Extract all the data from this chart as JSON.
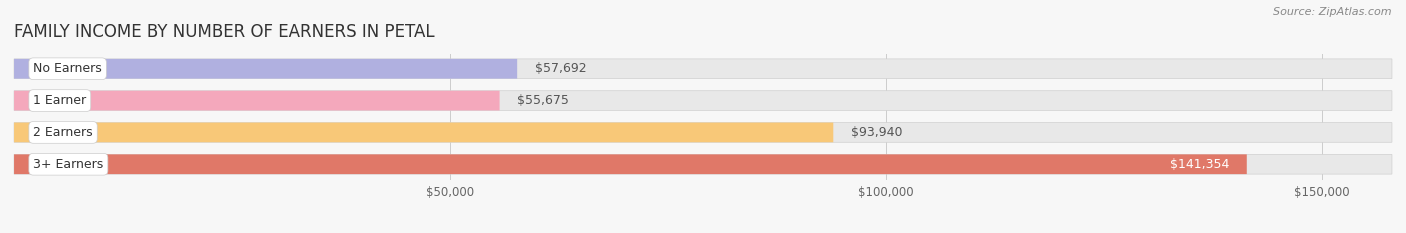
{
  "title": "FAMILY INCOME BY NUMBER OF EARNERS IN PETAL",
  "source": "Source: ZipAtlas.com",
  "categories": [
    "No Earners",
    "1 Earner",
    "2 Earners",
    "3+ Earners"
  ],
  "values": [
    57692,
    55675,
    93940,
    141354
  ],
  "bar_colors": [
    "#b0b0e0",
    "#f4a8bc",
    "#f8c878",
    "#e07868"
  ],
  "bar_bg_color": "#e8e8e8",
  "x_ticks": [
    50000,
    100000,
    150000
  ],
  "x_tick_labels": [
    "$50,000",
    "$100,000",
    "$150,000"
  ],
  "xlim_min": 0,
  "xlim_max": 158000,
  "background_color": "#f7f7f7",
  "title_fontsize": 12,
  "bar_height": 0.62,
  "value_labels": [
    "$57,692",
    "$55,675",
    "$93,940",
    "$141,354"
  ]
}
